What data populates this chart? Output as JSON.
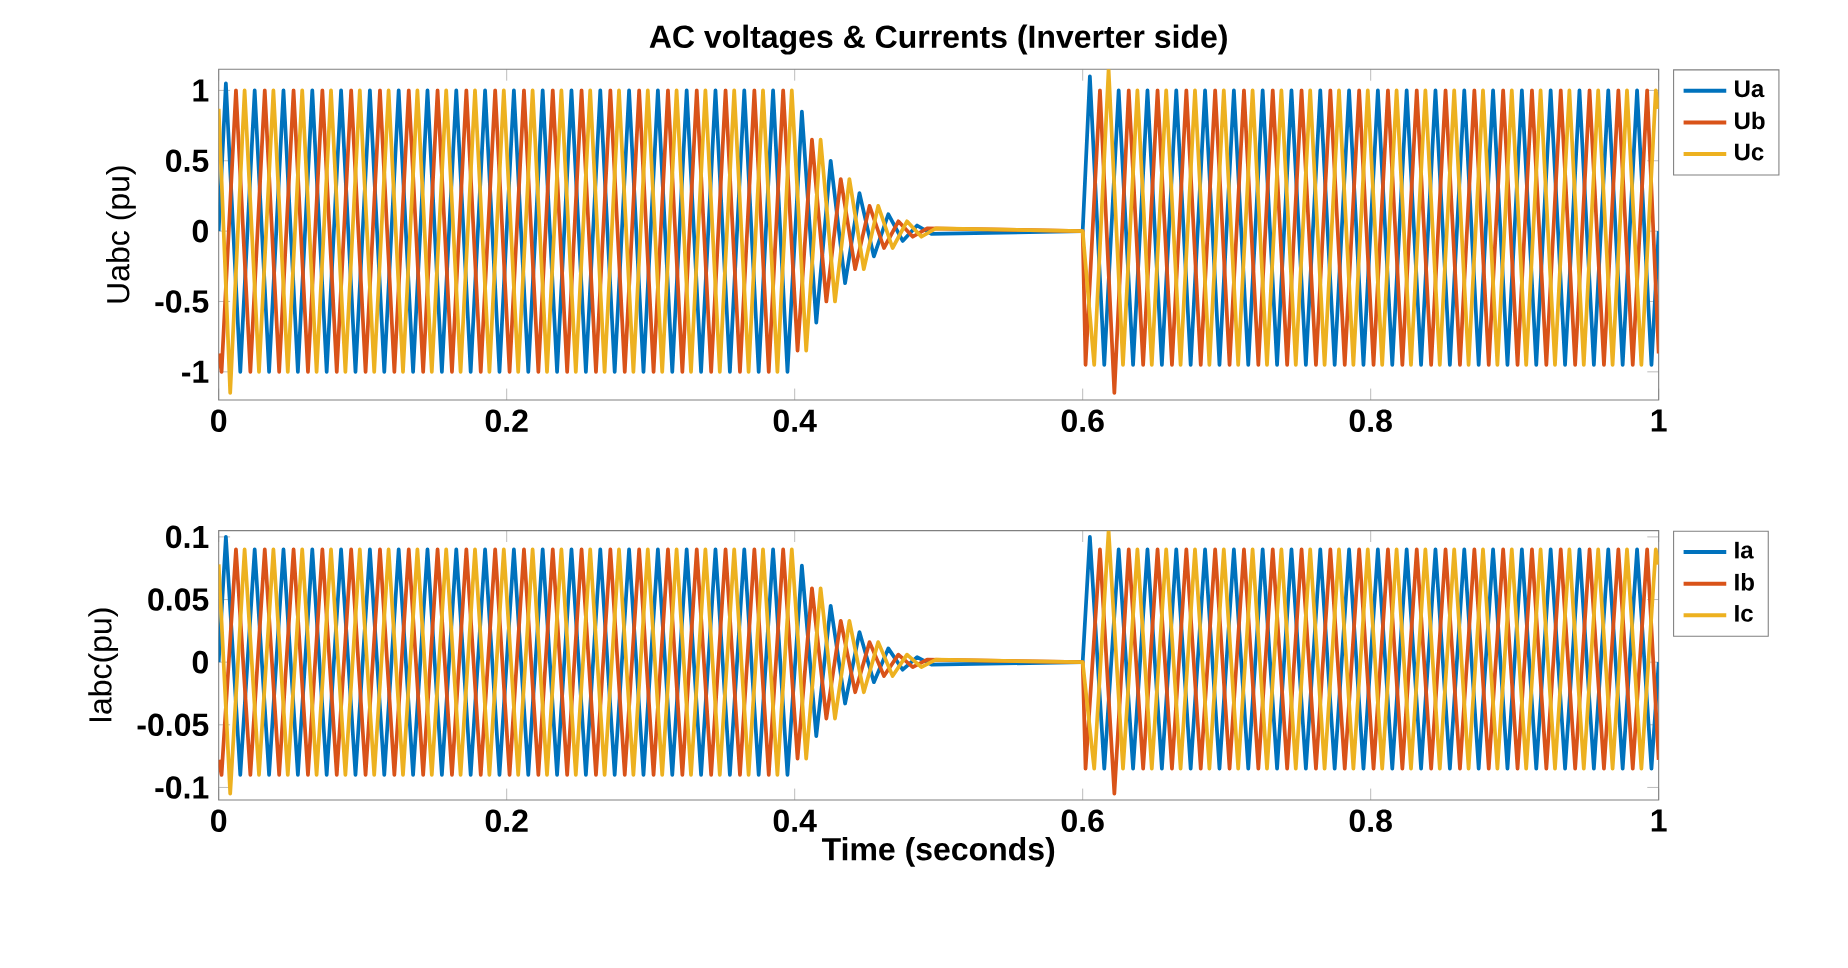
{
  "chart_data": [
    {
      "type": "line",
      "title": "AC voltages & Currents (Inverter side)",
      "ylabel": "Uabc (pu)",
      "xlim": [
        0,
        1
      ],
      "xticks": [
        0,
        0.2,
        0.4,
        0.6,
        0.8,
        1
      ],
      "ylim": [
        -1.2,
        1.15
      ],
      "yticks": [
        -1,
        -0.5,
        0,
        0.5,
        1
      ],
      "legend": "top right",
      "series": [
        {
          "name": "Ua",
          "color": "#0072bd",
          "x": [
            0,
            0.005,
            0.015,
            0.025,
            0.035,
            0.045,
            0.055,
            0.065,
            0.075,
            0.085,
            0.095,
            0.105,
            0.115,
            0.125,
            0.135,
            0.145,
            0.155,
            0.165,
            0.175,
            0.185,
            0.195,
            0.205,
            0.215,
            0.225,
            0.235,
            0.245,
            0.255,
            0.265,
            0.275,
            0.285,
            0.295,
            0.305,
            0.315,
            0.325,
            0.335,
            0.345,
            0.355,
            0.365,
            0.375,
            0.385,
            0.395,
            0.405,
            0.415,
            0.425,
            0.435,
            0.445,
            0.455,
            0.465,
            0.475,
            0.485,
            0.495,
            0.6,
            0.605,
            0.615,
            0.625,
            0.635,
            0.645,
            0.655,
            0.665,
            0.675,
            0.685,
            0.695,
            0.705,
            0.715,
            0.725,
            0.735,
            0.745,
            0.755,
            0.765,
            0.775,
            0.785,
            0.795,
            0.805,
            0.815,
            0.825,
            0.835,
            0.845,
            0.855,
            0.865,
            0.875,
            0.885,
            0.895,
            0.905,
            0.915,
            0.925,
            0.935,
            0.945,
            0.955,
            0.965,
            0.975,
            0.985,
            0.995,
            1
          ],
          "values": [
            0,
            1.05,
            -1,
            1,
            -1,
            1,
            -1,
            1,
            -1,
            1,
            -1,
            1,
            -1,
            1,
            -1,
            1,
            -1,
            1,
            -1,
            1,
            -1,
            1,
            -1,
            1,
            -1,
            1,
            -1,
            1,
            -1,
            1,
            -1,
            1,
            -1,
            1,
            -1,
            1,
            -1,
            1,
            -1,
            1,
            -1,
            0.85,
            -0.65,
            0.5,
            -0.37,
            0.27,
            -0.18,
            0.12,
            -0.07,
            0.04,
            -0.02,
            0,
            1.1,
            -0.95,
            1,
            -0.95,
            1,
            -0.95,
            1,
            -0.95,
            1,
            -0.95,
            1,
            -0.95,
            1,
            -0.95,
            1,
            -0.95,
            1,
            -0.95,
            1,
            -0.95,
            1,
            -0.95,
            1,
            -0.95,
            1,
            -0.95,
            1,
            -0.95,
            1,
            -0.95,
            1,
            -0.95,
            1,
            -0.95,
            1,
            -0.95,
            1,
            -0.95,
            1,
            -0.95,
            0
          ]
        },
        {
          "name": "Ub",
          "color": "#d95319",
          "x": [
            0,
            0.002,
            0.012,
            0.022,
            0.032,
            0.042,
            0.052,
            0.062,
            0.072,
            0.082,
            0.092,
            0.102,
            0.112,
            0.122,
            0.132,
            0.142,
            0.152,
            0.162,
            0.172,
            0.182,
            0.192,
            0.202,
            0.212,
            0.222,
            0.232,
            0.242,
            0.252,
            0.262,
            0.272,
            0.282,
            0.292,
            0.302,
            0.312,
            0.322,
            0.332,
            0.342,
            0.352,
            0.362,
            0.372,
            0.382,
            0.392,
            0.402,
            0.412,
            0.422,
            0.432,
            0.442,
            0.452,
            0.462,
            0.472,
            0.482,
            0.492,
            0.6,
            0.602,
            0.612,
            0.622,
            0.632,
            0.642,
            0.652,
            0.662,
            0.672,
            0.682,
            0.692,
            0.702,
            0.712,
            0.722,
            0.732,
            0.742,
            0.752,
            0.762,
            0.772,
            0.782,
            0.792,
            0.802,
            0.812,
            0.822,
            0.832,
            0.842,
            0.852,
            0.862,
            0.872,
            0.882,
            0.892,
            0.902,
            0.912,
            0.922,
            0.932,
            0.942,
            0.952,
            0.962,
            0.972,
            0.982,
            0.992,
            1
          ],
          "values": [
            -0.87,
            -1,
            1,
            -1,
            1,
            -1,
            1,
            -1,
            1,
            -1,
            1,
            -1,
            1,
            -1,
            1,
            -1,
            1,
            -1,
            1,
            -1,
            1,
            -1,
            1,
            -1,
            1,
            -1,
            1,
            -1,
            1,
            -1,
            1,
            -1,
            1,
            -1,
            1,
            -1,
            1,
            -1,
            1,
            -1,
            1,
            -0.85,
            0.65,
            -0.5,
            0.37,
            -0.27,
            0.18,
            -0.12,
            0.07,
            -0.04,
            0.02,
            0,
            -0.95,
            1,
            -1.15,
            1,
            -0.95,
            1,
            -0.95,
            1,
            -0.95,
            1,
            -0.95,
            1,
            -0.95,
            1,
            -0.95,
            1,
            -0.95,
            1,
            -0.95,
            1,
            -0.95,
            1,
            -0.95,
            1,
            -0.95,
            1,
            -0.95,
            1,
            -0.95,
            1,
            -0.95,
            1,
            -0.95,
            1,
            -0.95,
            1,
            -0.95,
            1,
            -0.95,
            1,
            -0.87
          ]
        },
        {
          "name": "Uc",
          "color": "#edb120",
          "x": [
            0,
            0.008,
            0.018,
            0.028,
            0.038,
            0.048,
            0.058,
            0.068,
            0.078,
            0.088,
            0.098,
            0.108,
            0.118,
            0.128,
            0.138,
            0.148,
            0.158,
            0.168,
            0.178,
            0.188,
            0.198,
            0.208,
            0.218,
            0.228,
            0.238,
            0.248,
            0.258,
            0.268,
            0.278,
            0.288,
            0.298,
            0.308,
            0.318,
            0.328,
            0.338,
            0.348,
            0.358,
            0.368,
            0.378,
            0.388,
            0.398,
            0.408,
            0.418,
            0.428,
            0.438,
            0.448,
            0.458,
            0.468,
            0.478,
            0.488,
            0.498,
            0.6,
            0.608,
            0.618,
            0.628,
            0.638,
            0.648,
            0.658,
            0.668,
            0.678,
            0.688,
            0.698,
            0.708,
            0.718,
            0.728,
            0.738,
            0.748,
            0.758,
            0.768,
            0.778,
            0.788,
            0.798,
            0.808,
            0.818,
            0.828,
            0.838,
            0.848,
            0.858,
            0.868,
            0.878,
            0.888,
            0.898,
            0.908,
            0.918,
            0.928,
            0.938,
            0.948,
            0.958,
            0.968,
            0.978,
            0.988,
            0.998,
            1
          ],
          "values": [
            0.87,
            -1.15,
            1,
            -1,
            1,
            -1,
            1,
            -1,
            1,
            -1,
            1,
            -1,
            1,
            -1,
            1,
            -1,
            1,
            -1,
            1,
            -1,
            1,
            -1,
            1,
            -1,
            1,
            -1,
            1,
            -1,
            1,
            -1,
            1,
            -1,
            1,
            -1,
            1,
            -1,
            1,
            -1,
            1,
            -1,
            1,
            -0.85,
            0.65,
            -0.5,
            0.37,
            -0.27,
            0.18,
            -0.12,
            0.07,
            -0.04,
            0.02,
            0,
            -0.95,
            1.15,
            -0.95,
            1,
            -0.95,
            1,
            -0.95,
            1,
            -0.95,
            1,
            -0.95,
            1,
            -0.95,
            1,
            -0.95,
            1,
            -0.95,
            1,
            -0.95,
            1,
            -0.95,
            1,
            -0.95,
            1,
            -0.95,
            1,
            -0.95,
            1,
            -0.95,
            1,
            -0.95,
            1,
            -0.95,
            1,
            -0.95,
            1,
            -0.95,
            1,
            -0.95,
            1,
            0.87
          ]
        }
      ]
    },
    {
      "type": "line",
      "xlabel": "Time (seconds)",
      "ylabel": "Iabc(pu)",
      "xlim": [
        0,
        1
      ],
      "xticks": [
        0,
        0.2,
        0.4,
        0.6,
        0.8,
        1
      ],
      "ylim": [
        -0.11,
        0.105
      ],
      "yticks": [
        -0.1,
        -0.05,
        0,
        0.05,
        0.1
      ],
      "legend": "top right",
      "series": [
        {
          "name": "Ia",
          "color": "#0072bd",
          "x": [
            0,
            0.005,
            0.015,
            0.025,
            0.035,
            0.045,
            0.055,
            0.065,
            0.075,
            0.085,
            0.095,
            0.105,
            0.115,
            0.125,
            0.135,
            0.145,
            0.155,
            0.165,
            0.175,
            0.185,
            0.195,
            0.205,
            0.215,
            0.225,
            0.235,
            0.245,
            0.255,
            0.265,
            0.275,
            0.285,
            0.295,
            0.305,
            0.315,
            0.325,
            0.335,
            0.345,
            0.355,
            0.365,
            0.375,
            0.385,
            0.395,
            0.405,
            0.415,
            0.425,
            0.435,
            0.445,
            0.455,
            0.465,
            0.475,
            0.485,
            0.495,
            0.6,
            0.605,
            0.615,
            0.625,
            0.635,
            0.645,
            0.655,
            0.665,
            0.675,
            0.685,
            0.695,
            0.705,
            0.715,
            0.725,
            0.735,
            0.745,
            0.755,
            0.765,
            0.775,
            0.785,
            0.795,
            0.805,
            0.815,
            0.825,
            0.835,
            0.845,
            0.855,
            0.865,
            0.875,
            0.885,
            0.895,
            0.905,
            0.915,
            0.925,
            0.935,
            0.945,
            0.955,
            0.965,
            0.975,
            0.985,
            0.995,
            1
          ],
          "values": [
            0,
            0.1,
            -0.09,
            0.09,
            -0.09,
            0.09,
            -0.09,
            0.09,
            -0.09,
            0.09,
            -0.09,
            0.09,
            -0.09,
            0.09,
            -0.09,
            0.09,
            -0.09,
            0.09,
            -0.09,
            0.09,
            -0.09,
            0.09,
            -0.09,
            0.09,
            -0.09,
            0.09,
            -0.09,
            0.09,
            -0.09,
            0.09,
            -0.09,
            0.09,
            -0.09,
            0.09,
            -0.09,
            0.09,
            -0.09,
            0.09,
            -0.09,
            0.09,
            -0.09,
            0.077,
            -0.059,
            0.045,
            -0.033,
            0.024,
            -0.016,
            0.011,
            -0.006,
            0.004,
            -0.002,
            0,
            0.1,
            -0.085,
            0.09,
            -0.085,
            0.09,
            -0.085,
            0.09,
            -0.085,
            0.09,
            -0.085,
            0.09,
            -0.085,
            0.09,
            -0.085,
            0.09,
            -0.085,
            0.09,
            -0.085,
            0.09,
            -0.085,
            0.09,
            -0.085,
            0.09,
            -0.085,
            0.09,
            -0.085,
            0.09,
            -0.085,
            0.09,
            -0.085,
            0.09,
            -0.085,
            0.09,
            -0.085,
            0.09,
            -0.085,
            0.09,
            -0.085,
            0.09,
            -0.085,
            0
          ]
        },
        {
          "name": "Ib",
          "color": "#d95319",
          "x": [
            0,
            0.002,
            0.012,
            0.022,
            0.032,
            0.042,
            0.052,
            0.062,
            0.072,
            0.082,
            0.092,
            0.102,
            0.112,
            0.122,
            0.132,
            0.142,
            0.152,
            0.162,
            0.172,
            0.182,
            0.192,
            0.202,
            0.212,
            0.222,
            0.232,
            0.242,
            0.252,
            0.262,
            0.272,
            0.282,
            0.292,
            0.302,
            0.312,
            0.322,
            0.332,
            0.342,
            0.352,
            0.362,
            0.372,
            0.382,
            0.392,
            0.402,
            0.412,
            0.422,
            0.432,
            0.442,
            0.452,
            0.462,
            0.472,
            0.482,
            0.492,
            0.6,
            0.602,
            0.612,
            0.622,
            0.632,
            0.642,
            0.652,
            0.662,
            0.672,
            0.682,
            0.692,
            0.702,
            0.712,
            0.722,
            0.732,
            0.742,
            0.752,
            0.762,
            0.772,
            0.782,
            0.792,
            0.802,
            0.812,
            0.822,
            0.832,
            0.842,
            0.852,
            0.862,
            0.872,
            0.882,
            0.892,
            0.902,
            0.912,
            0.922,
            0.932,
            0.942,
            0.952,
            0.962,
            0.972,
            0.982,
            0.992,
            1
          ],
          "values": [
            -0.078,
            -0.09,
            0.09,
            -0.09,
            0.09,
            -0.09,
            0.09,
            -0.09,
            0.09,
            -0.09,
            0.09,
            -0.09,
            0.09,
            -0.09,
            0.09,
            -0.09,
            0.09,
            -0.09,
            0.09,
            -0.09,
            0.09,
            -0.09,
            0.09,
            -0.09,
            0.09,
            -0.09,
            0.09,
            -0.09,
            0.09,
            -0.09,
            0.09,
            -0.09,
            0.09,
            -0.09,
            0.09,
            -0.09,
            0.09,
            -0.09,
            0.09,
            -0.09,
            0.09,
            -0.077,
            0.059,
            -0.045,
            0.033,
            -0.024,
            0.016,
            -0.011,
            0.006,
            -0.004,
            0.002,
            0,
            -0.085,
            0.09,
            -0.105,
            0.09,
            -0.085,
            0.09,
            -0.085,
            0.09,
            -0.085,
            0.09,
            -0.085,
            0.09,
            -0.085,
            0.09,
            -0.085,
            0.09,
            -0.085,
            0.09,
            -0.085,
            0.09,
            -0.085,
            0.09,
            -0.085,
            0.09,
            -0.085,
            0.09,
            -0.085,
            0.09,
            -0.085,
            0.09,
            -0.085,
            0.09,
            -0.085,
            0.09,
            -0.085,
            0.09,
            -0.085,
            0.09,
            -0.085,
            0.09,
            -0.078
          ]
        },
        {
          "name": "Ic",
          "color": "#edb120",
          "x": [
            0,
            0.008,
            0.018,
            0.028,
            0.038,
            0.048,
            0.058,
            0.068,
            0.078,
            0.088,
            0.098,
            0.108,
            0.118,
            0.128,
            0.138,
            0.148,
            0.158,
            0.168,
            0.178,
            0.188,
            0.198,
            0.208,
            0.218,
            0.228,
            0.238,
            0.248,
            0.258,
            0.268,
            0.278,
            0.288,
            0.298,
            0.308,
            0.318,
            0.328,
            0.338,
            0.348,
            0.358,
            0.368,
            0.378,
            0.388,
            0.398,
            0.408,
            0.418,
            0.428,
            0.438,
            0.448,
            0.458,
            0.468,
            0.478,
            0.488,
            0.498,
            0.6,
            0.608,
            0.618,
            0.628,
            0.638,
            0.648,
            0.658,
            0.668,
            0.678,
            0.688,
            0.698,
            0.708,
            0.718,
            0.728,
            0.738,
            0.748,
            0.758,
            0.768,
            0.778,
            0.788,
            0.798,
            0.808,
            0.818,
            0.828,
            0.838,
            0.848,
            0.858,
            0.868,
            0.878,
            0.888,
            0.898,
            0.908,
            0.918,
            0.928,
            0.938,
            0.948,
            0.958,
            0.968,
            0.978,
            0.988,
            0.998,
            1
          ],
          "values": [
            0.078,
            -0.105,
            0.09,
            -0.09,
            0.09,
            -0.09,
            0.09,
            -0.09,
            0.09,
            -0.09,
            0.09,
            -0.09,
            0.09,
            -0.09,
            0.09,
            -0.09,
            0.09,
            -0.09,
            0.09,
            -0.09,
            0.09,
            -0.09,
            0.09,
            -0.09,
            0.09,
            -0.09,
            0.09,
            -0.09,
            0.09,
            -0.09,
            0.09,
            -0.09,
            0.09,
            -0.09,
            0.09,
            -0.09,
            0.09,
            -0.09,
            0.09,
            -0.09,
            0.09,
            -0.077,
            0.059,
            -0.045,
            0.033,
            -0.024,
            0.016,
            -0.011,
            0.006,
            -0.004,
            0.002,
            0,
            -0.085,
            0.105,
            -0.085,
            0.09,
            -0.085,
            0.09,
            -0.085,
            0.09,
            -0.085,
            0.09,
            -0.085,
            0.09,
            -0.085,
            0.09,
            -0.085,
            0.09,
            -0.085,
            0.09,
            -0.085,
            0.09,
            -0.085,
            0.09,
            -0.085,
            0.09,
            -0.085,
            0.09,
            -0.085,
            0.09,
            -0.085,
            0.09,
            -0.085,
            0.09,
            -0.085,
            0.09,
            -0.085,
            0.09,
            -0.085,
            0.09,
            -0.085,
            0.09,
            0.078
          ]
        }
      ]
    }
  ]
}
